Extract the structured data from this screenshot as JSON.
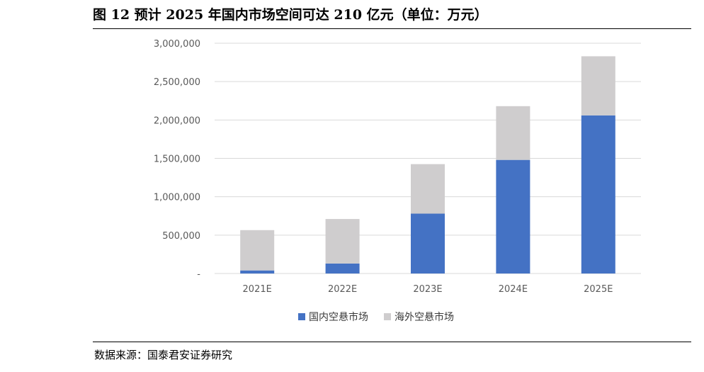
{
  "figure": {
    "title": "图 12 预计 2025 年国内市场空间可达 210 亿元（单位：万元）",
    "source": "数据来源：国泰君安证券研究"
  },
  "chart_data": {
    "type": "bar",
    "stacked": true,
    "categories": [
      "2021E",
      "2022E",
      "2023E",
      "2024E",
      "2025E"
    ],
    "series": [
      {
        "name": "国内空悬市场",
        "color": "#4472C4",
        "values": [
          40000,
          130000,
          780000,
          1480000,
          2060000
        ]
      },
      {
        "name": "海外空悬市场",
        "color": "#CFCDCE",
        "values": [
          525000,
          580000,
          645000,
          700000,
          770000
        ]
      }
    ],
    "ylim": [
      0,
      3000000
    ],
    "yticks": [
      0,
      500000,
      1000000,
      1500000,
      2000000,
      2500000,
      3000000
    ],
    "ytick_labels": [
      "-",
      "500,000",
      "1,000,000",
      "1,500,000",
      "2,000,000",
      "2,500,000",
      "3,000,000"
    ],
    "grid": true,
    "legend_position": "bottom"
  }
}
